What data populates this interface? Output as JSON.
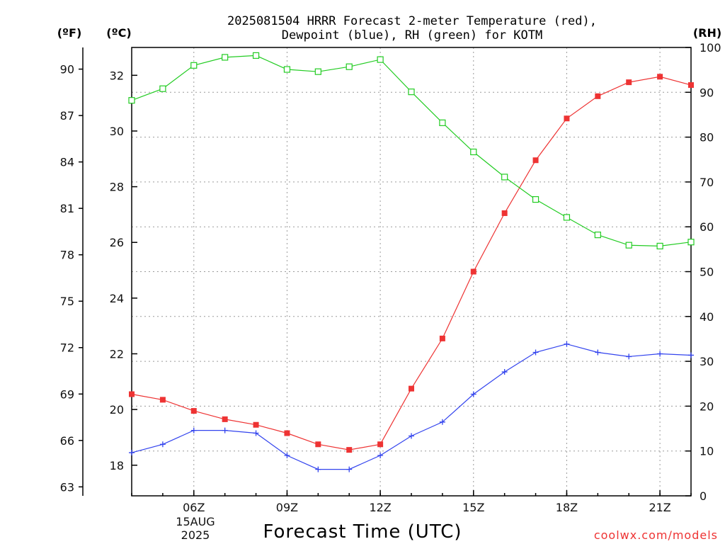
{
  "chart_data": {
    "type": "line",
    "title_line1": "2025081504 HRRR Forecast 2-meter Temperature (red),",
    "title_line2": "Dewpoint (blue), RH (green) for KOTM",
    "xlabel": "Forecast Time (UTC)",
    "credit": "coolwx.com/models",
    "unit_labels": {
      "fahrenheit": "(ºF)",
      "celsius": "(ºC)",
      "rh": "(RH)"
    },
    "date_label": [
      "15AUG",
      "2025"
    ],
    "x_hours_utc": [
      4,
      5,
      6,
      7,
      8,
      9,
      10,
      11,
      12,
      13,
      14,
      15,
      16,
      17,
      18,
      19,
      20,
      21,
      22
    ],
    "xlim": [
      4,
      22
    ],
    "x_ticks": [
      {
        "hour": 6,
        "label": "06Z"
      },
      {
        "hour": 9,
        "label": "09Z"
      },
      {
        "hour": 12,
        "label": "12Z"
      },
      {
        "hour": 15,
        "label": "15Z"
      },
      {
        "hour": 18,
        "label": "18Z"
      },
      {
        "hour": 21,
        "label": "21Z"
      }
    ],
    "y_celsius": {
      "lim": [
        16.9,
        33.0
      ],
      "ticks": [
        18,
        20,
        22,
        24,
        26,
        28,
        30,
        32
      ]
    },
    "y_fahrenheit_ticks": [
      63,
      66,
      69,
      72,
      75,
      78,
      81,
      84,
      87,
      90
    ],
    "y_rh": {
      "lim": [
        0,
        100
      ],
      "ticks": [
        0,
        10,
        20,
        30,
        40,
        50,
        60,
        70,
        80,
        90,
        100
      ]
    },
    "grid": true,
    "series": [
      {
        "name": "Temperature",
        "color": "#ee3333",
        "marker": "filled-square",
        "axis": "celsius",
        "values": [
          20.55,
          20.35,
          19.95,
          19.65,
          19.45,
          19.15,
          18.75,
          18.55,
          18.75,
          20.75,
          22.55,
          24.95,
          27.05,
          28.95,
          30.45,
          31.25,
          31.75,
          31.95,
          31.65
        ]
      },
      {
        "name": "Dewpoint",
        "color": "#3344ee",
        "marker": "plus",
        "axis": "celsius",
        "values": [
          18.45,
          18.75,
          19.25,
          19.25,
          19.15,
          18.35,
          17.85,
          17.85,
          18.35,
          19.05,
          19.55,
          20.55,
          21.35,
          22.05,
          22.35,
          22.05,
          21.9,
          22.0,
          21.95
        ]
      },
      {
        "name": "RH",
        "color": "#22cc22",
        "marker": "open-square",
        "axis": "rh",
        "values": [
          88.2,
          90.8,
          96.0,
          97.8,
          98.2,
          95.1,
          94.6,
          95.7,
          97.3,
          90.1,
          83.2,
          76.7,
          71.1,
          66.1,
          62.1,
          58.2,
          55.9,
          55.7,
          56.6
        ]
      }
    ]
  }
}
